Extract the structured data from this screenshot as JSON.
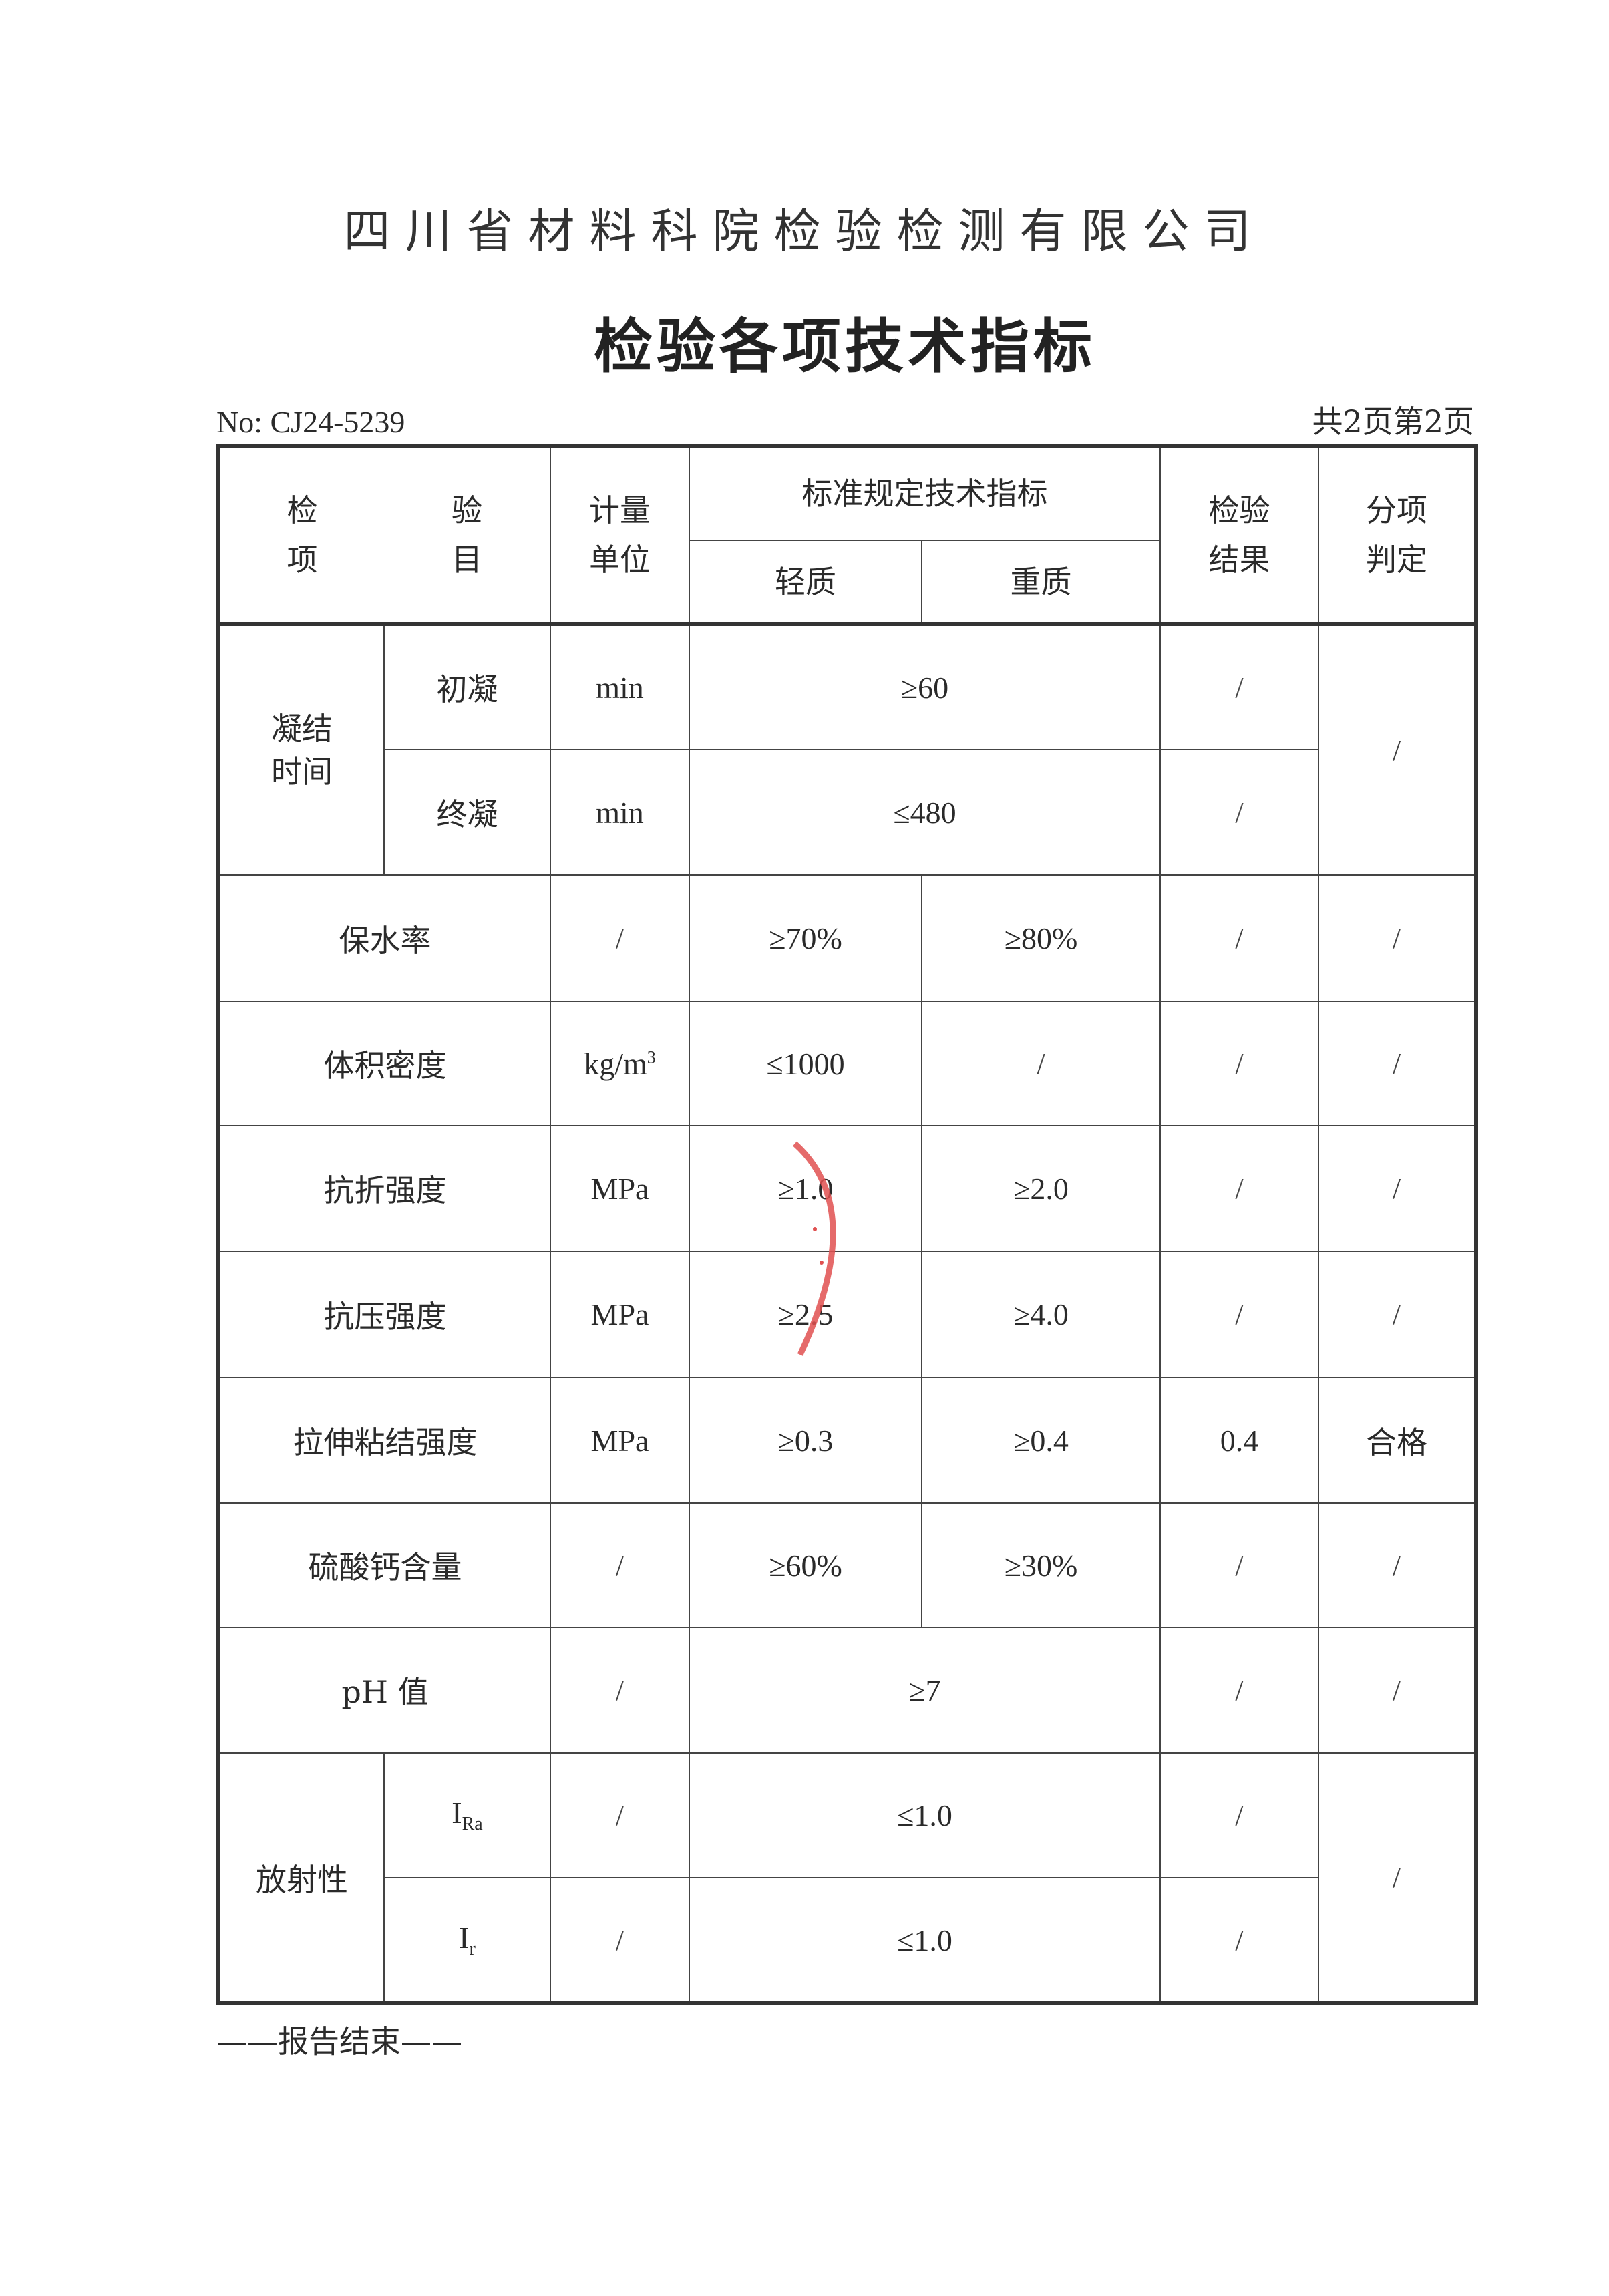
{
  "company": "四川省材料科院检验检测有限公司",
  "title": "检验各项技术指标",
  "report_no": "No: CJ24-5239",
  "page_info": "共2页第2页",
  "header": {
    "item_a": "检",
    "item_b": "验",
    "item_c": "项",
    "item_d": "目",
    "unit_a": "计量",
    "unit_b": "单位",
    "standard": "标准规定技术指标",
    "light": "轻质",
    "heavy": "重质",
    "result_a": "检验",
    "result_b": "结果",
    "judge_a": "分项",
    "judge_b": "判定"
  },
  "rows": {
    "setting": {
      "group": "凝结时间",
      "initial": {
        "name": "初凝",
        "unit": "min",
        "std": "≥60",
        "result": "/"
      },
      "final": {
        "name": "终凝",
        "unit": "min",
        "std": "≤480",
        "result": "/"
      },
      "judge": "/"
    },
    "water_retention": {
      "name": "保水率",
      "unit": "/",
      "light": "≥70%",
      "heavy": "≥80%",
      "result": "/",
      "judge": "/"
    },
    "density": {
      "name": "体积密度",
      "unit": "kg/m",
      "unit_sup": "3",
      "light": "≤1000",
      "heavy": "/",
      "result": "/",
      "judge": "/"
    },
    "flexural": {
      "name": "抗折强度",
      "unit": "MPa",
      "light": "≥1.0",
      "heavy": "≥2.0",
      "result": "/",
      "judge": "/"
    },
    "compressive": {
      "name": "抗压强度",
      "unit": "MPa",
      "light": "≥2.5",
      "heavy": "≥4.0",
      "result": "/",
      "judge": "/"
    },
    "tensile_bond": {
      "name": "拉伸粘结强度",
      "unit": "MPa",
      "light": "≥0.3",
      "heavy": "≥0.4",
      "result": "0.4",
      "judge": "合格"
    },
    "gypsum": {
      "name": "硫酸钙含量",
      "unit": "/",
      "light": "≥60%",
      "heavy": "≥30%",
      "result": "/",
      "judge": "/"
    },
    "ph": {
      "name": "pH 值",
      "unit": "/",
      "std": "≥7",
      "result": "/",
      "judge": "/"
    },
    "radioactivity": {
      "group": "放射性",
      "ira": {
        "name": "I",
        "name_sub": "Ra",
        "unit": "/",
        "std": "≤1.0",
        "result": "/"
      },
      "ir": {
        "name": "I",
        "name_sub": "r",
        "unit": "/",
        "std": "≤1.0",
        "result": "/"
      },
      "judge": "/"
    }
  },
  "footer": "——报告结束——",
  "colors": {
    "stamp": "#e05050",
    "ink": "#2a2a2a"
  }
}
